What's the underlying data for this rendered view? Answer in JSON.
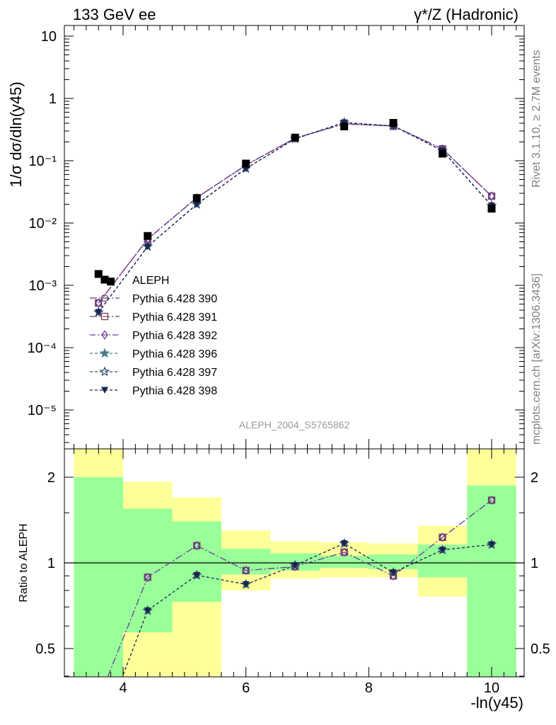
{
  "header": {
    "left": "133 GeV ee",
    "right": "γ*/Z (Hadronic)"
  },
  "side_text": {
    "rivet": "Rivet 3.1.10, ≥ 2.7M events",
    "mcplots": "mcplots.cern.ch [arXiv:1306.3436]"
  },
  "analysis_id": "ALEPH_2004_S5765862",
  "colors": {
    "data": "#000000",
    "band_outer": "#ffff99",
    "band_inner": "#99ff99",
    "p390": "#6a3d6a",
    "p391": "#7a3f5a",
    "p392": "#6a3aa0",
    "p396": "#4a7c8c",
    "p397": "#2e4a6e",
    "p398": "#1a2450"
  },
  "chart_data": [
    {
      "type": "scatter",
      "ylabel": "1/σ dσ/dln(y45)",
      "yscale": "log",
      "ylim": [
        2.5e-06,
        15
      ],
      "xlim": [
        3.05,
        10.5
      ],
      "yticks": [
        "10⁻⁵",
        "10⁻⁴",
        "10⁻³",
        "10⁻²",
        "10⁻¹",
        "1",
        "10"
      ],
      "legend_position": "left-middle",
      "series": [
        {
          "name": "ALEPH",
          "x": [
            3.6,
            3.8,
            4.4,
            5.2,
            6.0,
            6.8,
            7.6,
            8.4,
            9.2,
            10.0
          ],
          "values": [
            0.00152,
            0.00115,
            0.0062,
            0.025,
            0.09,
            0.235,
            0.355,
            0.405,
            0.13,
            0.017
          ]
        },
        {
          "name": "Pythia 6.428 390",
          "x": [
            3.6,
            4.4,
            5.2,
            6.0,
            6.8,
            7.6,
            8.4,
            9.2,
            10.0
          ],
          "values": [
            0.00052,
            0.0055,
            0.0255,
            0.085,
            0.23,
            0.39,
            0.36,
            0.155,
            0.027
          ]
        },
        {
          "name": "Pythia 6.428 391",
          "x": [
            3.6,
            4.4,
            5.2,
            6.0,
            6.8,
            7.6,
            8.4,
            9.2,
            10.0
          ],
          "values": [
            0.00052,
            0.0055,
            0.0255,
            0.085,
            0.23,
            0.39,
            0.36,
            0.155,
            0.027
          ]
        },
        {
          "name": "Pythia 6.428 392",
          "x": [
            3.6,
            4.4,
            5.2,
            6.0,
            6.8,
            7.6,
            8.4,
            9.2,
            10.0
          ],
          "values": [
            0.00052,
            0.0055,
            0.0255,
            0.085,
            0.23,
            0.39,
            0.36,
            0.155,
            0.027
          ]
        },
        {
          "name": "Pythia 6.428 396",
          "x": [
            3.6,
            4.4,
            5.2,
            6.0,
            6.8,
            7.6,
            8.4,
            9.2,
            10.0
          ],
          "values": [
            0.00037,
            0.0042,
            0.02,
            0.075,
            0.225,
            0.41,
            0.36,
            0.145,
            0.019
          ]
        },
        {
          "name": "Pythia 6.428 397",
          "x": [
            3.6,
            4.4,
            5.2,
            6.0,
            6.8,
            7.6,
            8.4,
            9.2,
            10.0
          ],
          "values": [
            0.00037,
            0.0042,
            0.02,
            0.075,
            0.225,
            0.41,
            0.36,
            0.145,
            0.019
          ]
        },
        {
          "name": "Pythia 6.428 398",
          "x": [
            3.6,
            4.4,
            5.2,
            6.0,
            6.8,
            7.6,
            8.4,
            9.2,
            10.0
          ],
          "values": [
            0.00037,
            0.0042,
            0.02,
            0.075,
            0.225,
            0.41,
            0.36,
            0.145,
            0.019
          ]
        }
      ]
    },
    {
      "type": "line",
      "xlabel": "-ln(y45)",
      "ylabel": "Ratio to ALEPH",
      "ylim": [
        0.33,
        2.3
      ],
      "xlim": [
        3.05,
        10.5
      ],
      "xticks": [
        "4",
        "6",
        "8",
        "10"
      ],
      "yticks": [
        "0.5",
        "1",
        "2"
      ],
      "bands": [
        {
          "xlo": 3.2,
          "xhi": 4.0,
          "inner": [
            0.0,
            2.0
          ],
          "outer": [
            0.0,
            3.0
          ]
        },
        {
          "xlo": 4.0,
          "xhi": 4.8,
          "inner": [
            0.57,
            1.55
          ],
          "outer": [
            0.0,
            1.93
          ]
        },
        {
          "xlo": 4.8,
          "xhi": 5.6,
          "inner": [
            0.73,
            1.4
          ],
          "outer": [
            0.0,
            1.7
          ]
        },
        {
          "xlo": 5.6,
          "xhi": 6.4,
          "inner": [
            0.91,
            1.12
          ],
          "outer": [
            0.8,
            1.3
          ]
        },
        {
          "xlo": 6.4,
          "xhi": 7.2,
          "inner": [
            0.94,
            1.08
          ],
          "outer": [
            0.88,
            1.19
          ]
        },
        {
          "xlo": 7.2,
          "xhi": 8.0,
          "inner": [
            0.96,
            1.06
          ],
          "outer": [
            0.89,
            1.18
          ]
        },
        {
          "xlo": 8.0,
          "xhi": 8.8,
          "inner": [
            0.95,
            1.07
          ],
          "outer": [
            0.89,
            1.17
          ]
        },
        {
          "xlo": 8.8,
          "xhi": 9.6,
          "inner": [
            0.89,
            1.16
          ],
          "outer": [
            0.76,
            1.35
          ]
        },
        {
          "xlo": 9.6,
          "xhi": 10.4,
          "inner": [
            0.0,
            1.87
          ],
          "outer": [
            0.0,
            3.0
          ]
        }
      ],
      "series": [
        {
          "name": "Pythia 6.428 390",
          "x": [
            3.6,
            4.4,
            5.2,
            6.0,
            6.8,
            7.6,
            8.4,
            9.2,
            10.0
          ],
          "values": [
            0.33,
            0.89,
            1.15,
            0.94,
            0.97,
            1.09,
            0.9,
            1.23,
            1.66
          ]
        },
        {
          "name": "Pythia 6.428 398",
          "x": [
            3.6,
            4.4,
            5.2,
            6.0,
            6.8,
            7.6,
            8.4,
            9.2,
            10.0
          ],
          "values": [
            0.24,
            0.68,
            0.905,
            0.84,
            0.98,
            1.17,
            0.925,
            1.11,
            1.16
          ]
        }
      ]
    }
  ]
}
